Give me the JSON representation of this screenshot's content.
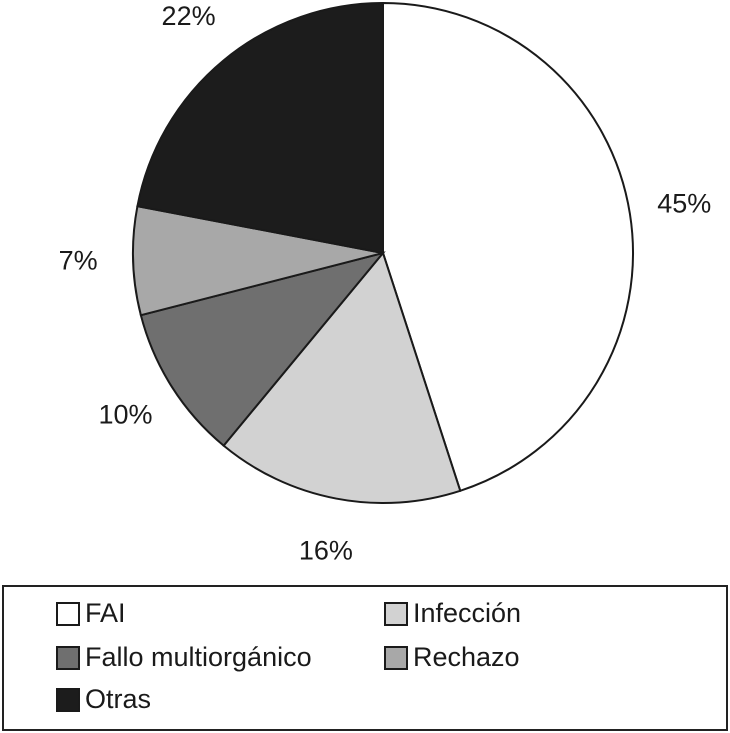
{
  "chart_data": {
    "type": "pie",
    "categories": [
      "FAI",
      "Infección",
      "Fallo multiorgánico",
      "Rechazo",
      "Otras"
    ],
    "values": [
      45,
      16,
      10,
      7,
      22
    ],
    "value_labels": [
      "45%",
      "16%",
      "10%",
      "7%",
      "22%"
    ],
    "colors": [
      "#ffffff",
      "#d2d2d2",
      "#6f6f6f",
      "#a8a8a8",
      "#1c1c1c"
    ]
  }
}
